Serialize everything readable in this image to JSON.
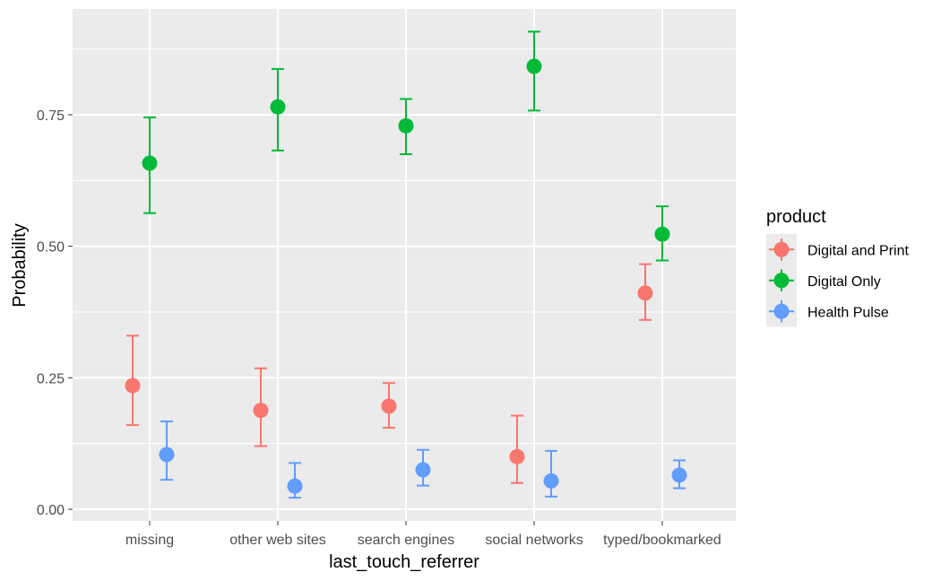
{
  "chart_data": {
    "type": "scatter",
    "title": "",
    "xlabel": "last_touch_referrer",
    "ylabel": "Probability",
    "categories": [
      "missing",
      "other web sites",
      "search engines",
      "social networks",
      "typed/bookmarked"
    ],
    "ylim": [
      -0.01,
      0.95
    ],
    "yticks": [
      0.0,
      0.25,
      0.5,
      0.75
    ],
    "ytick_labels": [
      "0.00",
      "0.25",
      "0.50",
      "0.75"
    ],
    "grid": true,
    "legend": {
      "title": "product",
      "placement": "right"
    },
    "error_bars": true,
    "series": [
      {
        "name": "Digital and Print",
        "color": "#F8766D",
        "values": [
          0.235,
          0.188,
          0.196,
          0.1,
          0.411
        ],
        "lower": [
          0.16,
          0.12,
          0.155,
          0.05,
          0.36
        ],
        "upper": [
          0.33,
          0.268,
          0.24,
          0.178,
          0.466
        ]
      },
      {
        "name": "Digital Only",
        "color": "#00BA38",
        "values": [
          0.658,
          0.765,
          0.729,
          0.842,
          0.523
        ],
        "lower": [
          0.563,
          0.682,
          0.675,
          0.758,
          0.473
        ],
        "upper": [
          0.745,
          0.837,
          0.78,
          0.908,
          0.576
        ]
      },
      {
        "name": "Health Pulse",
        "color": "#619CFF",
        "values": [
          0.104,
          0.044,
          0.075,
          0.054,
          0.065
        ],
        "lower": [
          0.056,
          0.022,
          0.045,
          0.024,
          0.04
        ],
        "upper": [
          0.167,
          0.088,
          0.113,
          0.111,
          0.093
        ]
      }
    ]
  }
}
